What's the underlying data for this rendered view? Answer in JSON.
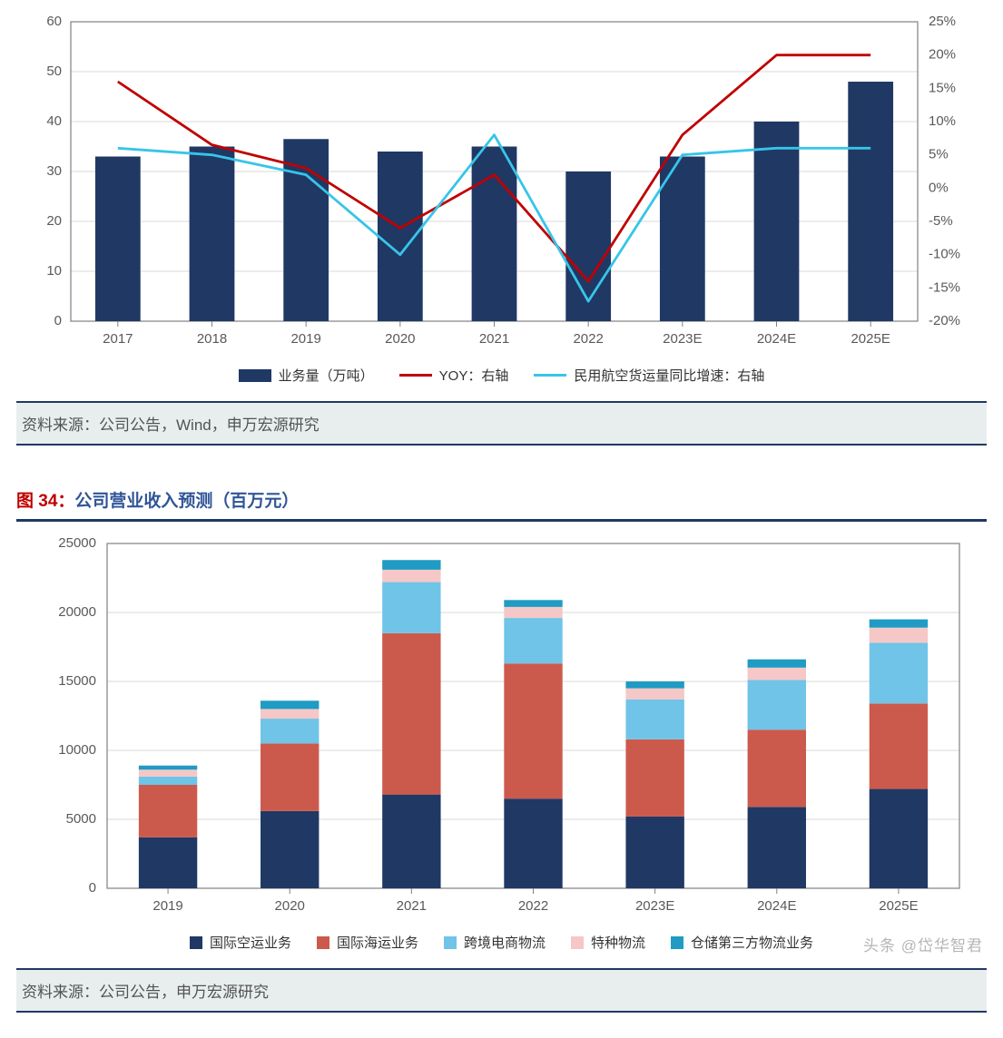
{
  "chart1": {
    "type": "bar+line-dual-axis",
    "categories": [
      "2017",
      "2018",
      "2019",
      "2020",
      "2021",
      "2022",
      "2023E",
      "2024E",
      "2025E"
    ],
    "bars": {
      "label": "业务量（万吨）",
      "values": [
        33,
        35,
        36.5,
        34,
        35,
        30,
        33,
        40,
        48
      ],
      "color": "#203864"
    },
    "line1": {
      "label": "YOY：右轴",
      "values": [
        16,
        6.5,
        3,
        -6,
        2,
        -14,
        8,
        20,
        20
      ],
      "color": "#c00000"
    },
    "line2": {
      "label": "民用航空货运量同比增速：右轴",
      "values": [
        6,
        5,
        2,
        -10,
        8,
        -17,
        5,
        6,
        6
      ],
      "color": "#37c5e8"
    },
    "y_left": {
      "min": 0,
      "max": 60,
      "step": 10
    },
    "y_right": {
      "min": -20,
      "max": 25,
      "step": 5,
      "suffix": "%"
    },
    "plot_border_color": "#808080",
    "grid_color": "#d9d9d9",
    "axis_font_size": 15,
    "axis_color": "#595959",
    "bar_width_ratio": 0.48,
    "line_width": 2.8,
    "legend": {
      "bar_swatch": "#203864"
    }
  },
  "source1": "资料来源：公司公告，Wind，申万宏源研究",
  "fig34_prefix": "图 34：",
  "fig34_title": "公司营业收入预测（百万元）",
  "chart2": {
    "type": "stacked-bar",
    "categories": [
      "2019",
      "2020",
      "2021",
      "2022",
      "2023E",
      "2024E",
      "2025E"
    ],
    "series": [
      {
        "label": "国际空运业务",
        "color": "#203864",
        "values": [
          3700,
          5600,
          6800,
          6500,
          5200,
          5900,
          7200
        ]
      },
      {
        "label": "国际海运业务",
        "color": "#cc5a4c",
        "values": [
          3800,
          4900,
          11700,
          9800,
          5600,
          5600,
          6200
        ]
      },
      {
        "label": "跨境电商物流",
        "color": "#6fc4e8",
        "values": [
          600,
          1800,
          3700,
          3300,
          2900,
          3600,
          4400
        ]
      },
      {
        "label": "特种物流",
        "color": "#f5c7c7",
        "values": [
          500,
          700,
          900,
          800,
          800,
          900,
          1100
        ]
      },
      {
        "label": "仓储第三方物流业务",
        "color": "#1f9bc4",
        "values": [
          300,
          600,
          700,
          500,
          500,
          600,
          600
        ]
      }
    ],
    "y": {
      "min": 0,
      "max": 25000,
      "step": 5000
    },
    "plot_border_color": "#808080",
    "grid_color": "#d9d9d9",
    "axis_font_size": 15,
    "axis_color": "#595959",
    "bar_width_ratio": 0.48
  },
  "source2": "资料来源：公司公告，申万宏源研究",
  "watermark": "头条 @岱华智君"
}
